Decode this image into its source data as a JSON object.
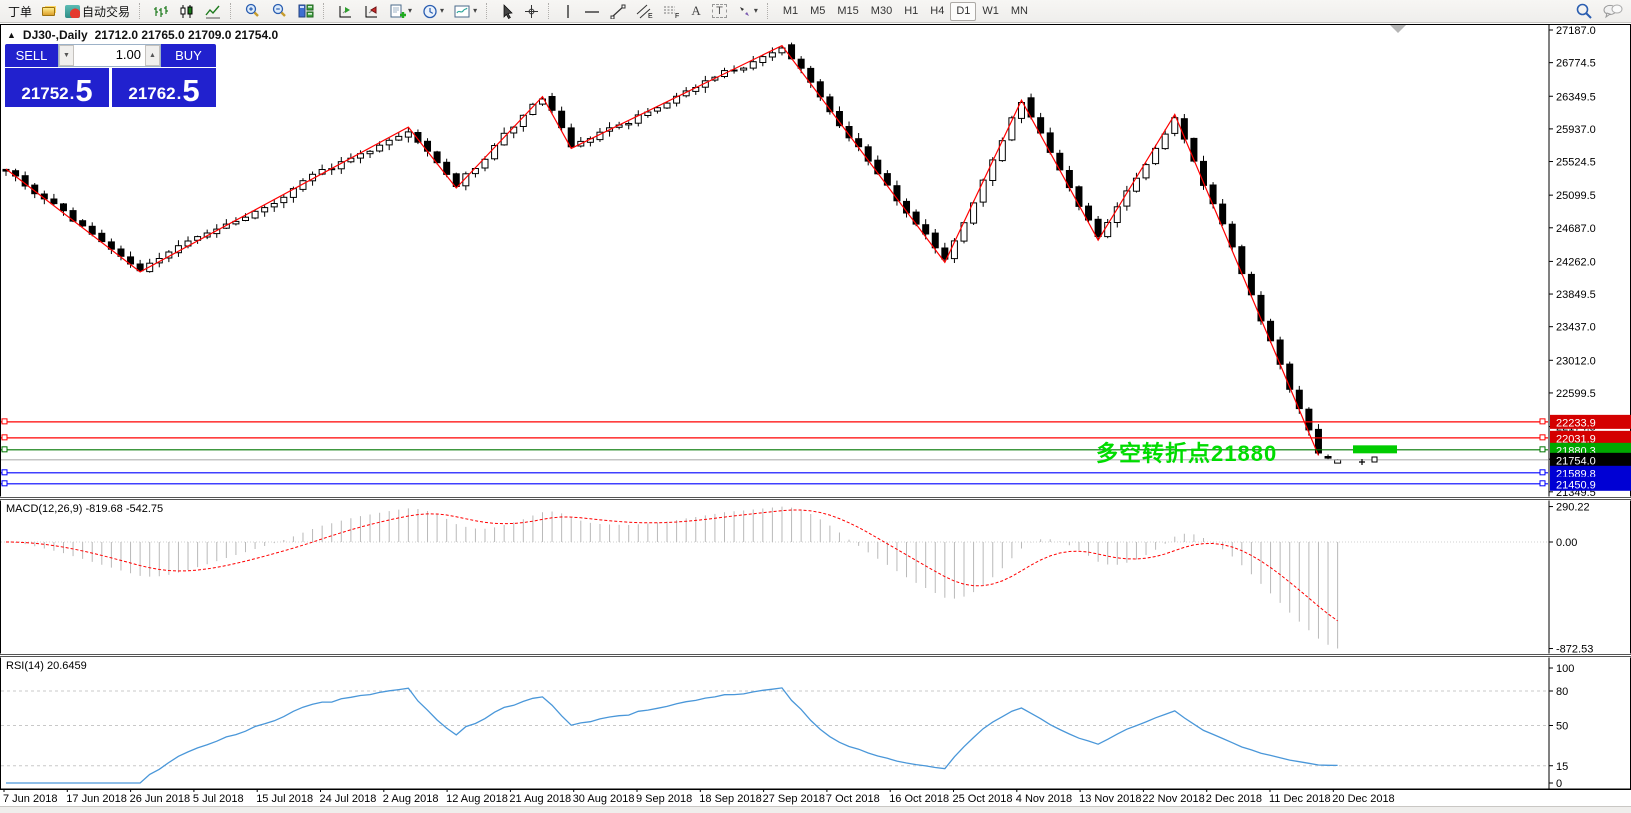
{
  "icons": {
    "collapse": "▲",
    "dropdown": "▾",
    "updown_up": "▲",
    "updown_down": "▼"
  },
  "toolbar": {
    "orders_label": "丁单",
    "autotrading_label": "自动交易",
    "text_tool_label": "A",
    "label_tool_label": "T",
    "timeframes": [
      "M1",
      "M5",
      "M15",
      "M30",
      "H1",
      "H4",
      "D1",
      "W1",
      "MN"
    ],
    "active_timeframe": "D1"
  },
  "trade_panel": {
    "sell_label": "SELL",
    "buy_label": "BUY",
    "volume": "1.00",
    "sell_price_main": "21752",
    "sell_price_big": "5",
    "buy_price_main": "21762",
    "buy_price_big": "5",
    "decimal_sep": "."
  },
  "chart_header": {
    "title_text": "DJ30-,Daily",
    "ohlc_text": "21712.0 21765.0 21709.0 21754.0"
  },
  "annotation": {
    "text": "多空转折点21880",
    "color": "#00dc00",
    "price": 21880.3
  },
  "chart_data": {
    "type": "candlestick",
    "symbol": "DJ30-",
    "timeframe": "Daily",
    "title": "DJ30-,Daily",
    "ohlc_display": {
      "open": 21712.0,
      "high": 21765.0,
      "low": 21709.0,
      "close": 21754.0
    },
    "candles_count": 140,
    "x_dates": [
      "7 Jun 2018",
      "17 Jun 2018",
      "26 Jun 2018",
      "5 Jul 2018",
      "15 Jul 2018",
      "24 Jul 2018",
      "2 Aug 2018",
      "12 Aug 2018",
      "21 Aug 2018",
      "30 Aug 2018",
      "9 Sep 2018",
      "18 Sep 2018",
      "27 Sep 2018",
      "7 Oct 2018",
      "16 Oct 2018",
      "25 Oct 2018",
      "4 Nov 2018",
      "13 Nov 2018",
      "22 Nov 2018",
      "2 Dec 2018",
      "11 Dec 2018",
      "20 Dec 2018"
    ],
    "price_axis_ticks": [
      27187.0,
      26774.5,
      26349.5,
      25937.0,
      25524.5,
      25099.5,
      24687.0,
      24262.0,
      23849.5,
      23437.0,
      23012.0,
      22599.5,
      22174.5,
      21762.0,
      21349.5
    ],
    "zigzag": [
      {
        "i": 0,
        "p": 25430
      },
      {
        "i": 14,
        "p": 24130
      },
      {
        "i": 42,
        "p": 25960
      },
      {
        "i": 47,
        "p": 25190
      },
      {
        "i": 56,
        "p": 26345
      },
      {
        "i": 59,
        "p": 25690
      },
      {
        "i": 81,
        "p": 26990
      },
      {
        "i": 98,
        "p": 24250
      },
      {
        "i": 106,
        "p": 26300
      },
      {
        "i": 114,
        "p": 24530
      },
      {
        "i": 122,
        "p": 26120
      },
      {
        "i": 137,
        "p": 21810
      },
      {
        "i": 139,
        "p": 21754,
        "line": false
      }
    ],
    "horizontal_lines": [
      {
        "price": 22233.9,
        "label": "22233.9",
        "line_color": "#ff0000",
        "box_color": "#d40000",
        "style": "solid",
        "handles": true
      },
      {
        "price": 22031.9,
        "label": "22031.9",
        "line_color": "#ff0000",
        "box_color": "#d40000",
        "style": "solid",
        "handles": true
      },
      {
        "price": 21880.3,
        "label": "21880.3",
        "line_color": "#007700",
        "box_color": "#00a800",
        "style": "solid",
        "handles": true
      },
      {
        "price": 21754.0,
        "label": "21754.0",
        "line_color": "#b0b0b0",
        "box_color": "#000000",
        "style": "solid",
        "handles": false
      },
      {
        "price": 21589.8,
        "label": "21589.8",
        "line_color": "#0000ff",
        "box_color": "#0000d4",
        "style": "solid",
        "handles": true
      },
      {
        "price": 21450.9,
        "label": "21450.9",
        "line_color": "#0000ff",
        "box_color": "#0000d4",
        "style": "solid",
        "handles": true
      }
    ],
    "pivot_bar": {
      "price": 21880.3,
      "color": "#00cc00"
    },
    "macd": {
      "name": "MACD(12,26,9)",
      "values_text": "-819.68 -542.75",
      "value_main": -819.68,
      "value_signal": -542.75,
      "axis_ticks": [
        290.22,
        0.0,
        -872.53
      ],
      "hist_color": "#b9b9b9",
      "signal_color": "#ff0000"
    },
    "rsi": {
      "name": "RSI(14)",
      "value_text": "20.6459",
      "value": 20.6459,
      "axis_ticks": [
        100,
        80,
        50,
        15,
        0
      ],
      "levels": [
        80,
        50,
        15
      ],
      "line_color": "#4a97d9"
    }
  }
}
